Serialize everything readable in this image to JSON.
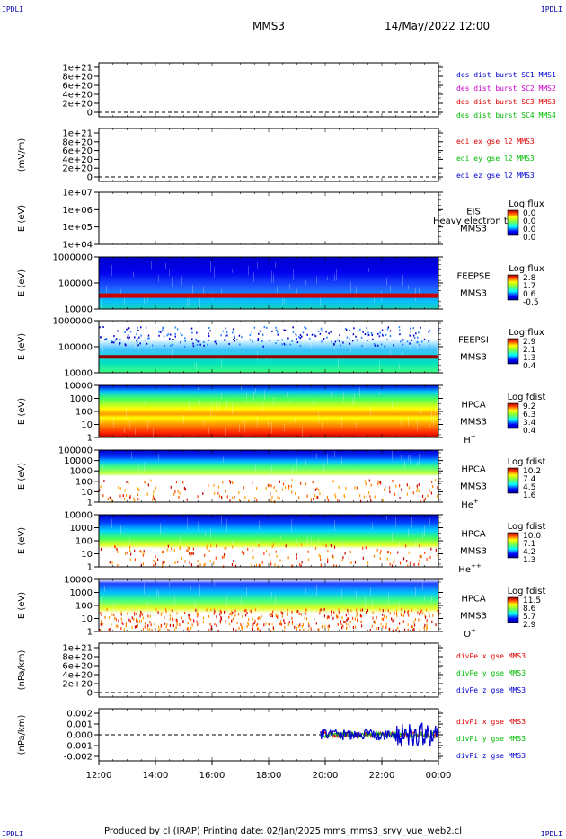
{
  "header": {
    "corner_label": "IPDLI",
    "spacecraft": "MMS3",
    "datetime": "14/May/2022 12:00"
  },
  "footer": {
    "text": "Produced by cl (IRAP)   Printing date: 02/Jan/2025   mms_mms3_srvy_vue_web2.cl"
  },
  "colors": {
    "blue": "#0000cc",
    "magenta": "#cc00cc",
    "red": "#dd0000",
    "green": "#00bb00"
  },
  "chart_data": [
    {
      "type": "line",
      "ylabel": "",
      "ticks": [
        "0",
        "2e+20",
        "4e+20",
        "6e+20",
        "8e+20",
        "1e+21"
      ],
      "ylim": [
        0,
        1e+21
      ],
      "series": [
        {
          "name": "des dist burst SC1 MMS1",
          "color": "#0000cc",
          "values": []
        },
        {
          "name": "des dist burst SC2 MMS2",
          "color": "#cc00cc",
          "values": []
        },
        {
          "name": "des dist burst SC3 MMS3",
          "color": "#dd0000",
          "values": []
        },
        {
          "name": "des dist burst SC4 MMS4",
          "color": "#00bb00",
          "values": []
        }
      ]
    },
    {
      "type": "line",
      "ylabel": "(mV/m)",
      "ticks": [
        "0",
        "2e+20",
        "4e+20",
        "6e+20",
        "8e+20",
        "1e+21"
      ],
      "ylim": [
        0,
        1e+21
      ],
      "series": [
        {
          "name": "edi ex gse l2 MMS3",
          "color": "#dd0000",
          "values": []
        },
        {
          "name": "edi ey gse l2 MMS3",
          "color": "#00bb00",
          "values": []
        },
        {
          "name": "edi ez gse l2 MMS3",
          "color": "#0000cc",
          "values": []
        }
      ]
    },
    {
      "type": "heatmap",
      "ylabel": "E (eV)",
      "ticks": [
        "1e+04",
        "1e+05",
        "1e+06",
        "1e+07"
      ],
      "instrument": [
        "EIS",
        "MMS3"
      ],
      "overlap_text": "Heavy electron to",
      "colorbar": {
        "title": "Log flux",
        "labels": [
          "0.0",
          "0.0",
          "0.0",
          "0.0"
        ]
      }
    },
    {
      "type": "heatmap",
      "ylabel": "E (eV)",
      "ticks": [
        "10000",
        "100000",
        "1000000"
      ],
      "instrument": [
        "FEEPSE",
        "MMS3"
      ],
      "colorbar": {
        "title": "Log flux",
        "labels": [
          "2.8",
          "1.7",
          "0.6",
          "-0.5"
        ]
      }
    },
    {
      "type": "heatmap",
      "ylabel": "E (eV)",
      "ticks": [
        "10000",
        "100000",
        "1000000"
      ],
      "instrument": [
        "FEEPSI",
        "MMS3"
      ],
      "colorbar": {
        "title": "Log flux",
        "labels": [
          "2.9",
          "2.1",
          "1.3",
          "0.4"
        ]
      }
    },
    {
      "type": "heatmap",
      "ylabel": "E (eV)",
      "ticks": [
        "1",
        "10",
        "100",
        "1000",
        "10000"
      ],
      "instrument": [
        "HPCA",
        "MMS3"
      ],
      "species": "H",
      "species_sup": "+",
      "colorbar": {
        "title": "Log fdist",
        "labels": [
          "9.2",
          "6.3",
          "3.4",
          "0.4"
        ]
      }
    },
    {
      "type": "heatmap",
      "ylabel": "E (eV)",
      "ticks": [
        "1",
        "10",
        "100",
        "1000",
        "10000",
        "100000"
      ],
      "instrument": [
        "HPCA",
        "MMS3"
      ],
      "species": "He",
      "species_sup": "+",
      "colorbar": {
        "title": "Log fdist",
        "labels": [
          "10.2",
          "7.4",
          "4.5",
          "1.6"
        ]
      }
    },
    {
      "type": "heatmap",
      "ylabel": "E (eV)",
      "ticks": [
        "1",
        "10",
        "100",
        "1000",
        "10000"
      ],
      "instrument": [
        "HPCA",
        "MMS3"
      ],
      "species": "He",
      "species_sup": "++",
      "colorbar": {
        "title": "Log fdist",
        "labels": [
          "10.0",
          "7.1",
          "4.2",
          "1.3"
        ]
      }
    },
    {
      "type": "heatmap",
      "ylabel": "E (eV)",
      "ticks": [
        "1",
        "10",
        "100",
        "1000",
        "10000"
      ],
      "instrument": [
        "HPCA",
        "MMS3"
      ],
      "species": "O",
      "species_sup": "+",
      "colorbar": {
        "title": "Log fdist",
        "labels": [
          "11.5",
          "8.6",
          "5.7",
          "2.9"
        ]
      }
    },
    {
      "type": "line",
      "ylabel": "(nPa/km)",
      "ticks": [
        "0",
        "2e+20",
        "4e+20",
        "6e+20",
        "8e+20",
        "1e+21"
      ],
      "ylim": [
        0,
        1e+21
      ],
      "series": [
        {
          "name": "divPe x gse MMS3",
          "color": "#dd0000",
          "values": []
        },
        {
          "name": "divPe y gse MMS3",
          "color": "#00bb00",
          "values": []
        },
        {
          "name": "divPe z gse MMS3",
          "color": "#0000cc",
          "values": []
        }
      ]
    },
    {
      "type": "line",
      "ylabel": "(nPa/km)",
      "ticks": [
        "-0.002",
        "-0.001",
        "0.000",
        "0.001",
        "0.002"
      ],
      "ylim": [
        -0.0025,
        0.0025
      ],
      "data_start": "19:50",
      "series": [
        {
          "name": "divPi x gse MMS3",
          "color": "#dd0000"
        },
        {
          "name": "divPi y gse MMS3",
          "color": "#00bb00"
        },
        {
          "name": "divPi z gse MMS3",
          "color": "#0000cc"
        }
      ]
    }
  ],
  "xaxis": {
    "ticks": [
      "12:00",
      "14:00",
      "16:00",
      "18:00",
      "20:00",
      "22:00",
      "00:00"
    ]
  }
}
